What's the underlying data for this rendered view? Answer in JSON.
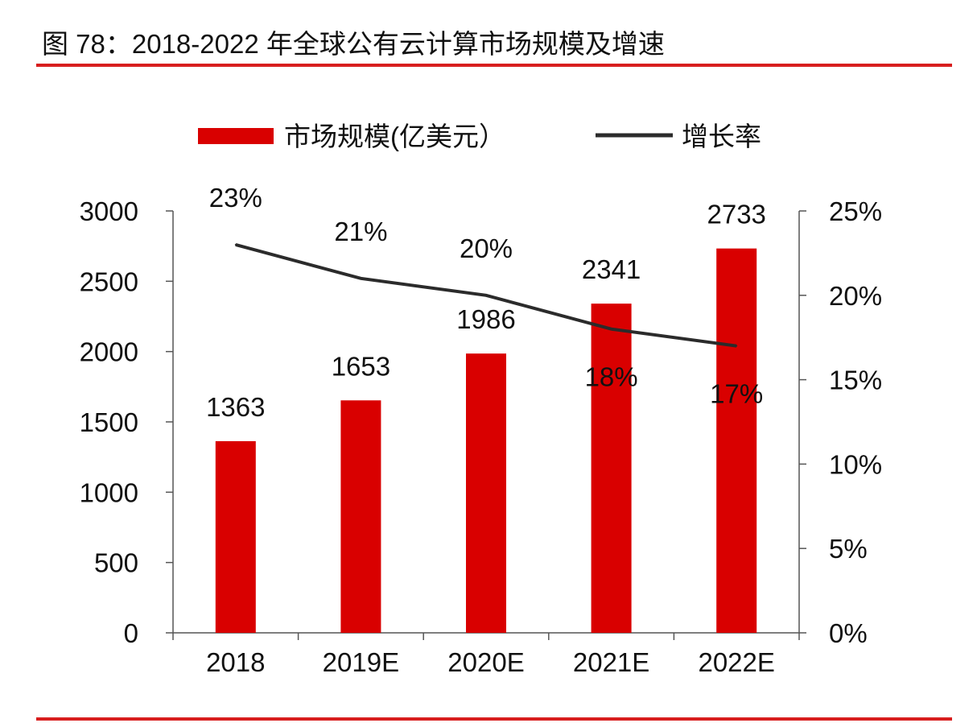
{
  "title": "图 78：2018-2022 年全球公有云计算市场规模及增速",
  "chart_data": {
    "type": "bar+line",
    "categories": [
      "2018",
      "2019E",
      "2020E",
      "2021E",
      "2022E"
    ],
    "series": [
      {
        "name": "市场规模(亿美元）",
        "type": "bar",
        "axis": "left",
        "color": "#d90000",
        "values": [
          1363,
          1653,
          1986,
          2341,
          2733
        ],
        "label_position": [
          "above",
          "above",
          "above",
          "above",
          "above"
        ]
      },
      {
        "name": "增长率",
        "type": "line",
        "axis": "right",
        "color": "#2b2b2b",
        "values": [
          23,
          21,
          20,
          18,
          17
        ],
        "labels": [
          "23%",
          "21%",
          "20%",
          "18%",
          "17%"
        ],
        "label_position": [
          "above",
          "above",
          "above",
          "below",
          "below"
        ]
      }
    ],
    "y_left": {
      "range": [
        0,
        3000
      ],
      "ticks": [
        "0",
        "500",
        "1000",
        "1500",
        "2000",
        "2500",
        "3000"
      ]
    },
    "y_right": {
      "range": [
        0,
        25
      ],
      "ticks": [
        "0%",
        "5%",
        "10%",
        "15%",
        "20%",
        "25%"
      ]
    },
    "legend": "top",
    "grid": false
  }
}
